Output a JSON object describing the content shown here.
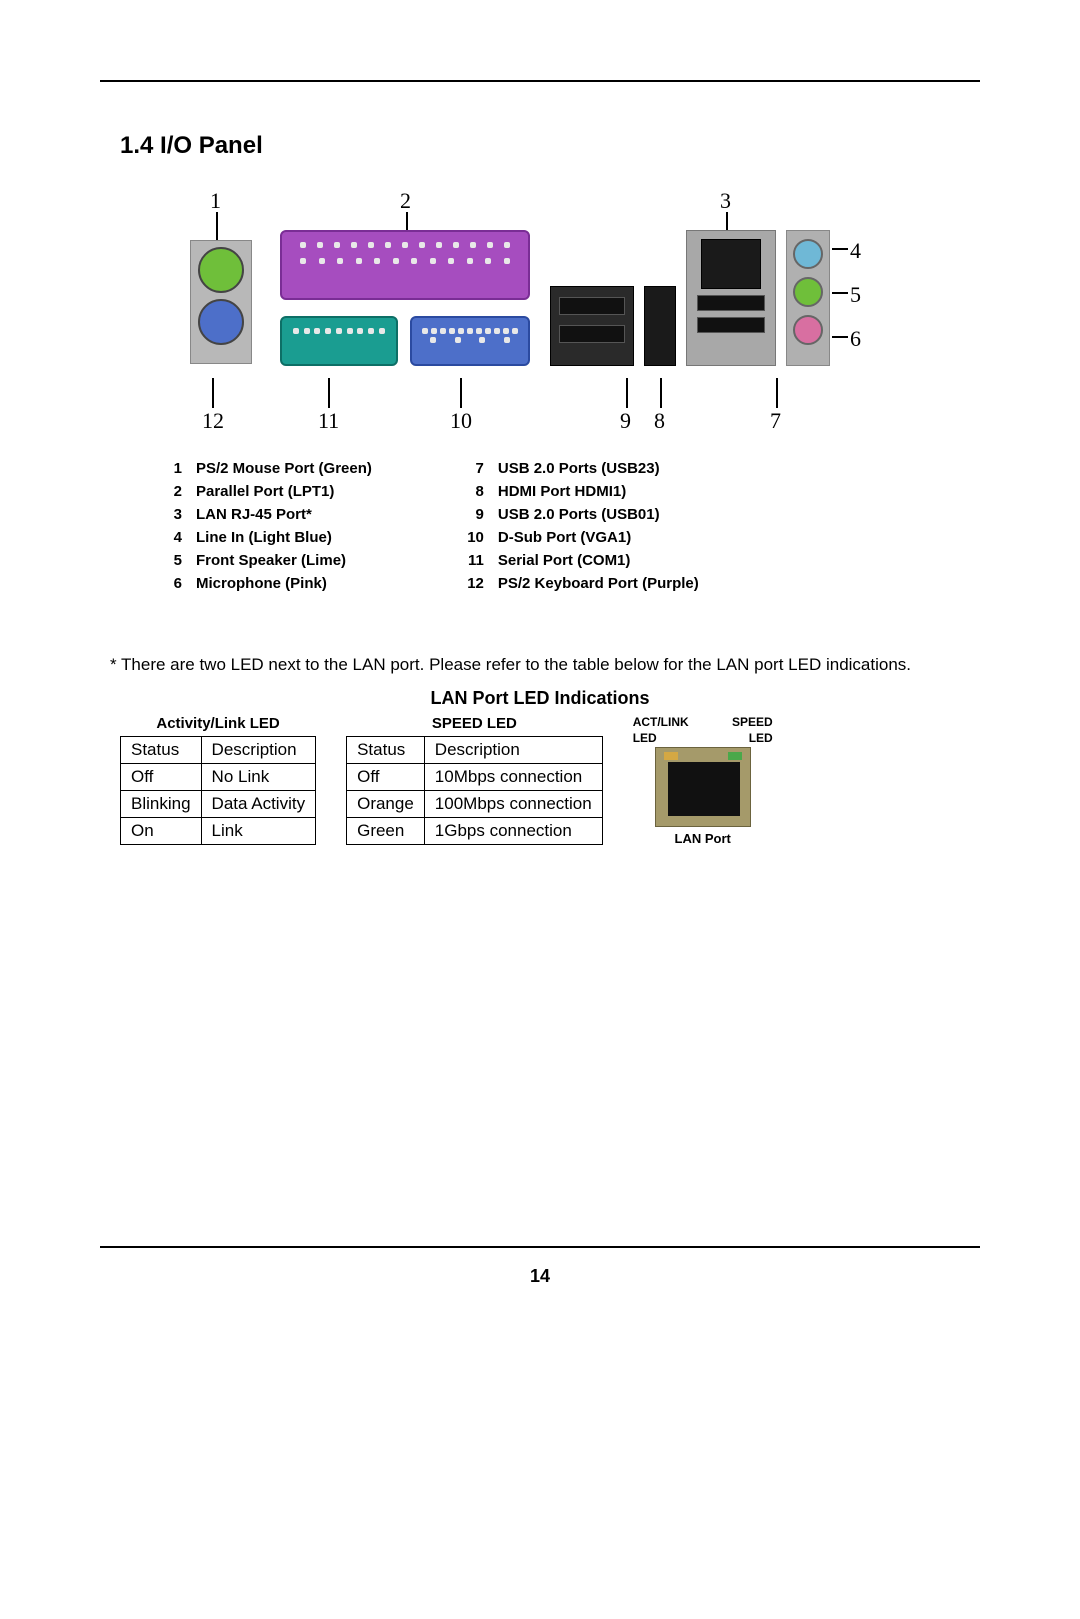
{
  "section_title": "1.4  I/O Panel",
  "callouts": {
    "n1": "1",
    "n2": "2",
    "n3": "3",
    "n4": "4",
    "n5": "5",
    "n6": "6",
    "n7": "7",
    "n8": "8",
    "n9": "9",
    "n10": "10",
    "n11": "11",
    "n12": "12"
  },
  "legend_left": [
    {
      "num": "1",
      "label": "PS/2 Mouse Port (Green)"
    },
    {
      "num": "2",
      "label": "Parallel Port (LPT1)"
    },
    {
      "num": "3",
      "label": "LAN RJ-45 Port*"
    },
    {
      "num": "4",
      "label": "Line In (Light Blue)"
    },
    {
      "num": "5",
      "label": "Front Speaker (Lime)"
    },
    {
      "num": "6",
      "label": "Microphone (Pink)"
    }
  ],
  "legend_right": [
    {
      "num": "7",
      "label": "USB 2.0 Ports (USB23)"
    },
    {
      "num": "8",
      "label": "HDMI Port HDMI1)"
    },
    {
      "num": "9",
      "label": "USB 2.0 Ports (USB01)"
    },
    {
      "num": "10",
      "label": "D-Sub Port (VGA1)"
    },
    {
      "num": "11",
      "label": "Serial Port (COM1)"
    },
    {
      "num": "12",
      "label": "PS/2 Keyboard Port (Purple)"
    }
  ],
  "note": "* There are two LED next to the LAN port. Please refer to the table below for the LAN port LED indications.",
  "table_title": "LAN Port LED Indications",
  "activity_caption": "Activity/Link LED",
  "speed_caption": "SPEED LED",
  "activity_table": {
    "header": [
      "Status",
      "Description"
    ],
    "rows": [
      [
        "Off",
        "No Link"
      ],
      [
        "Blinking",
        "Data Activity"
      ],
      [
        "On",
        "Link"
      ]
    ]
  },
  "speed_table": {
    "header": [
      "Status",
      "Description"
    ],
    "rows": [
      [
        "Off",
        "10Mbps connection"
      ],
      [
        "Orange",
        "100Mbps connection"
      ],
      [
        "Green",
        "1Gbps connection"
      ]
    ]
  },
  "lan_mini": {
    "left_hdr": "ACT/LINK",
    "right_hdr": "SPEED",
    "sub": "LED",
    "label": "LAN Port",
    "led_left_color": "#d4a843",
    "led_right_color": "#4aa84a"
  },
  "colors": {
    "ps2_mouse": "#6fbf3a",
    "ps2_kbd": "#4d6fc9",
    "parallel": "#a64dbf",
    "serial": "#1a9d91",
    "vga": "#4d6fc9",
    "jack_linein": "#6fb8d6",
    "jack_speaker": "#6fbf3a",
    "jack_mic": "#d86fa1"
  },
  "page_number": "14"
}
